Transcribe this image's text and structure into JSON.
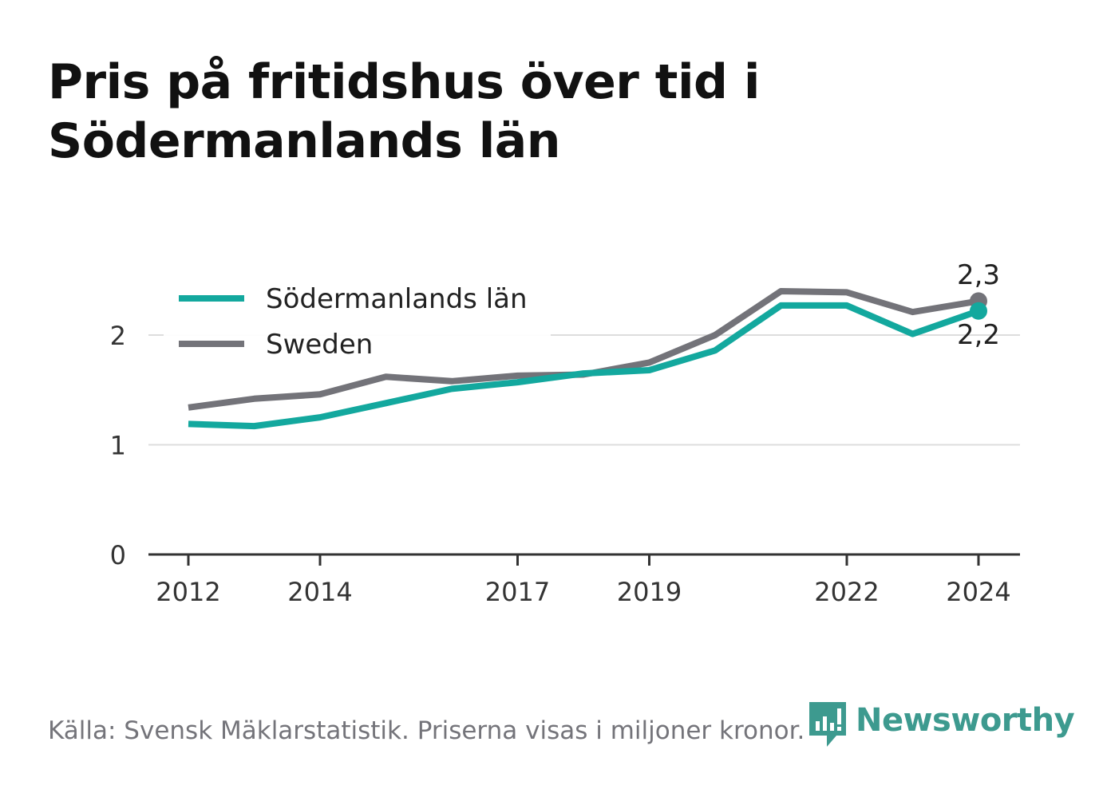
{
  "title_lines": [
    "Pris på fritidshus över tid i",
    "Södermanlands län"
  ],
  "source": "Källa: Svensk Mäklarstatistik. Priserna visas i miljoner kronor.",
  "brand": {
    "name": "Newsworthy",
    "icon": "newsworthy-logo-icon",
    "color": "#3d9a8f"
  },
  "chart_data": {
    "type": "line",
    "title": "Pris på fritidshus över tid i Södermanlands län",
    "xlabel": "",
    "ylabel": "",
    "x": [
      2012,
      2013,
      2014,
      2015,
      2016,
      2017,
      2018,
      2019,
      2020,
      2021,
      2022,
      2023,
      2024
    ],
    "x_ticks": [
      2012,
      2014,
      2017,
      2019,
      2022,
      2024
    ],
    "y_ticks": [
      0,
      1,
      2
    ],
    "y_tick_labels": [
      "0",
      "1",
      "2"
    ],
    "ylim": [
      0,
      2.4
    ],
    "grid": true,
    "legend": "top-left",
    "series": [
      {
        "name": "Södermanlands län",
        "color": "#13a89e",
        "values": [
          1.19,
          1.17,
          1.25,
          1.38,
          1.51,
          1.57,
          1.65,
          1.68,
          1.86,
          2.27,
          2.27,
          2.01,
          2.22
        ],
        "end_label": "2,2"
      },
      {
        "name": "Sweden",
        "color": "#737379",
        "values": [
          1.34,
          1.42,
          1.46,
          1.62,
          1.58,
          1.63,
          1.64,
          1.75,
          2.0,
          2.4,
          2.39,
          2.21,
          2.31
        ],
        "end_label": "2,3"
      }
    ]
  }
}
